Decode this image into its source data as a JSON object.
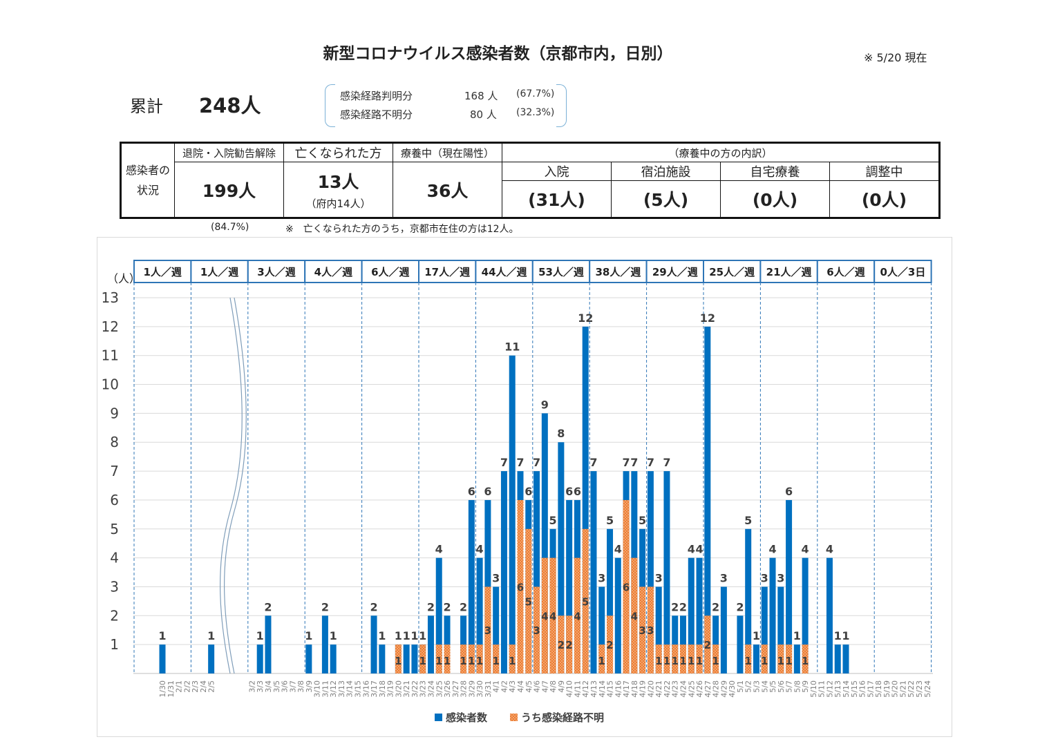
{
  "header": {
    "title": "新型コロナウイルス感染者数（京都市内，日別）",
    "as_of": "※ 5/20 現在"
  },
  "total": {
    "label": "累計",
    "value": "248人"
  },
  "route": [
    {
      "label": "感染経路判明分",
      "count": "168 人",
      "pct": "(67.7%)"
    },
    {
      "label": "感染経路不明分",
      "count": "80 人",
      "pct": "(32.3%)"
    }
  ],
  "status_table": {
    "row_label": "感染者の状況",
    "recovered_header": "退院・入院勧告解除",
    "recovered_value": "199人",
    "deceased_header": "亡くなられた方",
    "deceased_value": "13人",
    "deceased_sub": "（府内14人）",
    "treating_header": "療養中（現在陽性）",
    "treating_value": "36人",
    "breakdown_header": "（療養中の方の内訳）",
    "breakdown": [
      {
        "label": "入院",
        "value": "(31人)"
      },
      {
        "label": "宿泊施設",
        "value": "(5人)"
      },
      {
        "label": "自宅療養",
        "value": "(0人)"
      },
      {
        "label": "調整中",
        "value": "(0人)"
      }
    ]
  },
  "footnotes": {
    "recovered_pct": "(84.7%)",
    "deceased_note": "※　亡くなられた方のうち，京都市在住の方は12人。"
  },
  "colors": {
    "infected": "#0070c0",
    "unknown": "#ed7d31",
    "weekly_border": "#2e75b6"
  },
  "chart_data": {
    "type": "bar",
    "y_unit_label": "（人）",
    "ylim": [
      0,
      13
    ],
    "y_ticks": [
      1,
      2,
      3,
      4,
      5,
      6,
      7,
      8,
      9,
      10,
      11,
      12,
      13
    ],
    "categories": [
      "1/30",
      "1/31",
      "2/1",
      "2/2",
      "2/3",
      "2/4",
      "2/5",
      "3/2",
      "3/3",
      "3/4",
      "3/5",
      "3/6",
      "3/7",
      "3/8",
      "3/9",
      "3/10",
      "3/11",
      "3/12",
      "3/13",
      "3/14",
      "3/15",
      "3/16",
      "3/17",
      "3/18",
      "3/19",
      "3/20",
      "3/21",
      "3/22",
      "3/23",
      "3/24",
      "3/25",
      "3/26",
      "3/27",
      "3/28",
      "3/29",
      "3/30",
      "3/31",
      "4/1",
      "4/2",
      "4/3",
      "4/4",
      "4/5",
      "4/6",
      "4/7",
      "4/8",
      "4/9",
      "4/10",
      "4/11",
      "4/12",
      "4/13",
      "4/14",
      "4/15",
      "4/16",
      "4/17",
      "4/18",
      "4/19",
      "4/20",
      "4/21",
      "4/22",
      "4/23",
      "4/24",
      "4/25",
      "4/26",
      "4/27",
      "4/28",
      "4/29",
      "4/30",
      "5/1",
      "5/2",
      "5/3",
      "5/4",
      "5/5",
      "5/6",
      "5/7",
      "5/8",
      "5/9",
      "5/10",
      "5/11",
      "5/12",
      "5/13",
      "5/14",
      "5/15",
      "5/16",
      "5/17",
      "5/18",
      "5/19",
      "5/20",
      "5/21",
      "5/22",
      "5/23",
      "5/24"
    ],
    "series": [
      {
        "name": "感染者数",
        "values": [
          1,
          0,
          0,
          0,
          0,
          0,
          1,
          0,
          1,
          2,
          0,
          0,
          0,
          0,
          1,
          0,
          2,
          1,
          0,
          0,
          0,
          0,
          2,
          1,
          0,
          1,
          1,
          1,
          1,
          2,
          4,
          2,
          0,
          2,
          6,
          4,
          6,
          3,
          7,
          11,
          7,
          6,
          7,
          9,
          5,
          8,
          6,
          6,
          12,
          7,
          3,
          5,
          4,
          7,
          7,
          5,
          7,
          3,
          7,
          2,
          2,
          4,
          4,
          12,
          2,
          3,
          0,
          2,
          5,
          1,
          3,
          4,
          3,
          6,
          1,
          4,
          0,
          0,
          4,
          1,
          1,
          0,
          0,
          0,
          0,
          0,
          0,
          0,
          0,
          0,
          0
        ]
      },
      {
        "name": "うち感染経路不明",
        "values": [
          0,
          0,
          0,
          0,
          0,
          0,
          0,
          0,
          0,
          0,
          0,
          0,
          0,
          0,
          0,
          0,
          0,
          0,
          0,
          0,
          0,
          0,
          0,
          0,
          0,
          1,
          0,
          0,
          1,
          0,
          1,
          1,
          0,
          1,
          1,
          1,
          3,
          1,
          0,
          1,
          6,
          5,
          3,
          4,
          4,
          2,
          2,
          4,
          5,
          0,
          1,
          2,
          0,
          6,
          4,
          3,
          3,
          1,
          1,
          1,
          1,
          1,
          1,
          2,
          1,
          0,
          0,
          0,
          1,
          0,
          1,
          0,
          1,
          1,
          0,
          1,
          0,
          0,
          0,
          0,
          0,
          0,
          0,
          0,
          0,
          0,
          0,
          0,
          0,
          0,
          0
        ]
      }
    ],
    "weekly": [
      "1人／週",
      "1人／週",
      "3人／週",
      "4人／週",
      "6人／週",
      "17人／週",
      "44人／週",
      "53人／週",
      "38人／週",
      "29人／週",
      "25人／週",
      "21人／週",
      "6人／週",
      "0人／3日"
    ],
    "legend_position": "bottom",
    "axis_break_between": [
      "2/5",
      "3/2"
    ]
  }
}
